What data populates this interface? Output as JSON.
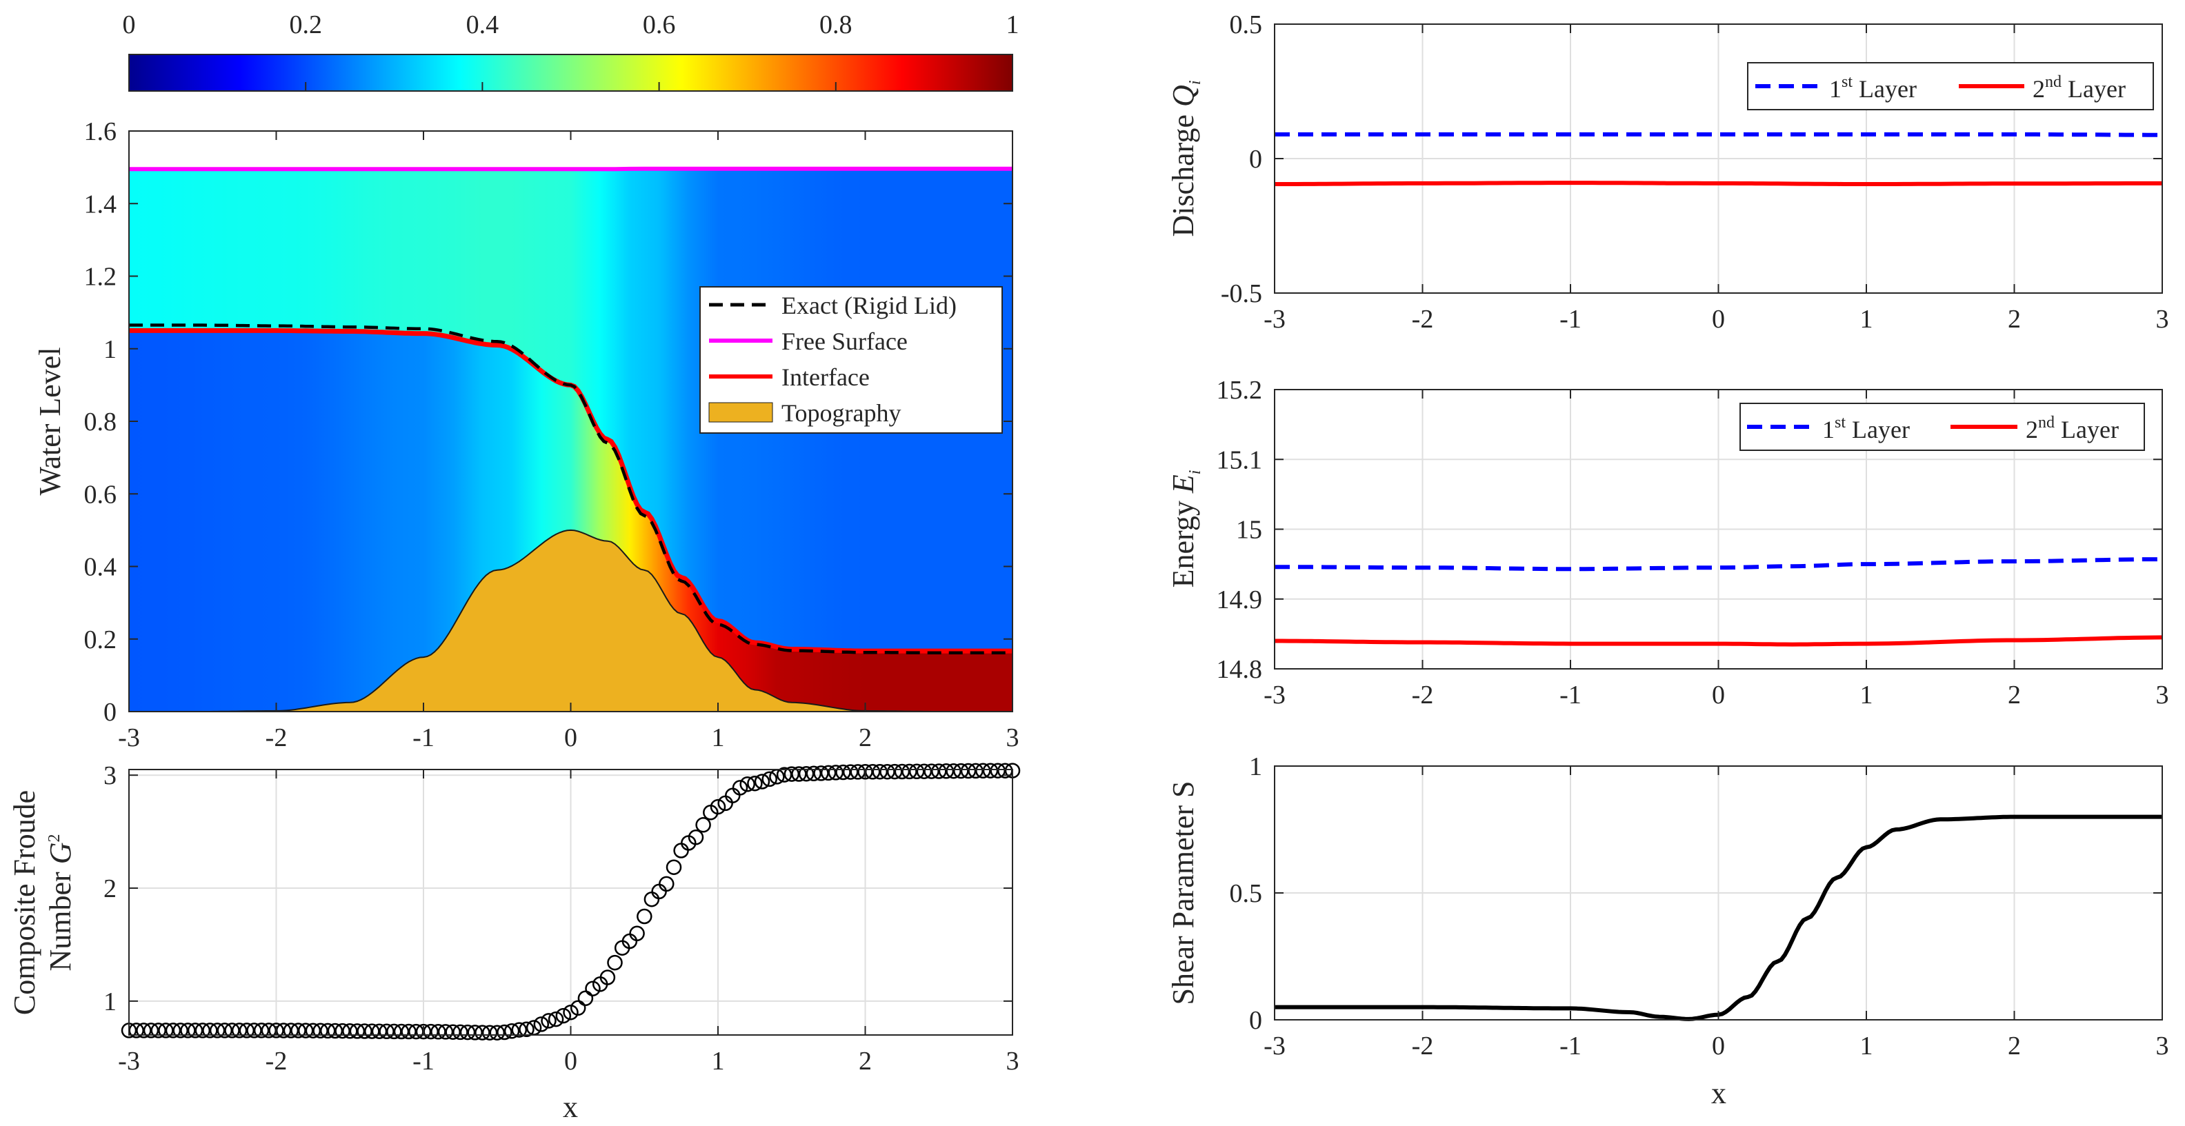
{
  "colors": {
    "layer1": "#0000ff",
    "layer2": "#ff0000",
    "exact": "#000000",
    "free_surface": "#ff00ff",
    "interface": "#ff0000",
    "topography": "#edb120",
    "shear": "#000000",
    "grid": "#dfdfdf",
    "axis": "#262626",
    "jet_low": "#00008f",
    "jet_high": "#800000"
  },
  "chart_data": [
    {
      "id": "colorbar",
      "type": "heatmap",
      "colormap": "jet",
      "range": [
        0,
        1
      ],
      "ticks": [
        0,
        0.2,
        0.4,
        0.6,
        0.8,
        1
      ],
      "tick_labels": [
        "0",
        "0.2",
        "0.4",
        "0.6",
        "0.8",
        "1"
      ],
      "orientation": "horizontal",
      "placement": "top"
    },
    {
      "id": "water-level",
      "type": "area",
      "title": "",
      "xlabel": "",
      "ylabel": "Water Level",
      "xlim": [
        -3,
        3
      ],
      "ylim": [
        0,
        1.6
      ],
      "xticks": [
        -3,
        -2,
        -1,
        0,
        1,
        2,
        3
      ],
      "xtick_labels": [
        "-3",
        "-2",
        "-1",
        "0",
        "1",
        "2",
        "3"
      ],
      "yticks": [
        0,
        0.2,
        0.4,
        0.6,
        0.8,
        1,
        1.2,
        1.4,
        1.6
      ],
      "ytick_labels": [
        "0",
        "0.2",
        "0.4",
        "0.6",
        "0.8",
        "1",
        "1.2",
        "1.4",
        "1.6"
      ],
      "grid": false,
      "legend_position": "right",
      "x": [
        -3,
        -2.5,
        -2,
        -1.5,
        -1,
        -0.5,
        0,
        0.25,
        0.5,
        0.75,
        1,
        1.25,
        1.5,
        2,
        2.5,
        3
      ],
      "series": [
        {
          "name": "Exact (Rigid Lid)",
          "style": "dashed",
          "values": [
            1.065,
            1.065,
            1.063,
            1.06,
            1.055,
            1.02,
            0.9,
            0.74,
            0.54,
            0.36,
            0.24,
            0.185,
            0.168,
            0.163,
            0.162,
            0.162
          ]
        },
        {
          "name": "Free Surface",
          "style": "solid",
          "values": [
            1.495,
            1.495,
            1.495,
            1.495,
            1.495,
            1.495,
            1.495,
            1.495,
            1.496,
            1.496,
            1.496,
            1.496,
            1.496,
            1.496,
            1.496,
            1.496
          ]
        },
        {
          "name": "Interface",
          "style": "solid",
          "values": [
            1.05,
            1.05,
            1.05,
            1.048,
            1.042,
            1.01,
            0.9,
            0.75,
            0.55,
            0.37,
            0.25,
            0.19,
            0.172,
            0.167,
            0.167,
            0.167
          ]
        },
        {
          "name": "Topography",
          "style": "filled",
          "values": [
            0,
            0,
            0.002,
            0.025,
            0.15,
            0.39,
            0.5,
            0.47,
            0.39,
            0.27,
            0.15,
            0.06,
            0.025,
            0.002,
            0,
            0
          ]
        }
      ],
      "field_layers": [
        {
          "name": "upper-layer",
          "x": [
            -3,
            -2,
            -1,
            -0.5,
            0,
            0.5,
            1,
            2,
            3
          ],
          "values": [
            0.38,
            0.39,
            0.41,
            0.42,
            0.41,
            0.32,
            0.24,
            0.22,
            0.22
          ]
        },
        {
          "name": "lower-layer",
          "x": [
            -3,
            -2,
            -1,
            -0.5,
            0,
            0.25,
            0.5,
            0.75,
            1,
            1.5,
            2,
            3
          ],
          "values": [
            0.21,
            0.22,
            0.26,
            0.32,
            0.42,
            0.55,
            0.69,
            0.82,
            0.9,
            0.95,
            0.96,
            0.96
          ]
        }
      ]
    },
    {
      "id": "froude",
      "type": "scatter",
      "xlabel": "x",
      "ylabel_line1": "Composite Froude",
      "ylabel_line2": "Number",
      "ylabel_symbol": "G",
      "ylabel_power": "2",
      "xlim": [
        -3,
        3
      ],
      "ylim": [
        0.7,
        3.05
      ],
      "xticks": [
        -3,
        -2,
        -1,
        0,
        1,
        2,
        3
      ],
      "xtick_labels": [
        "-3",
        "-2",
        "-1",
        "0",
        "1",
        "2",
        "3"
      ],
      "yticks": [
        1,
        2,
        3
      ],
      "ytick_labels": [
        "1",
        "2",
        "3"
      ],
      "grid": true,
      "marker": "circle",
      "x": [
        -3,
        -2,
        -1,
        -0.5,
        -0.3,
        -0.1,
        0,
        0.2,
        0.4,
        0.6,
        0.8,
        1,
        1.2,
        1.5,
        2,
        3
      ],
      "values": [
        0.74,
        0.74,
        0.73,
        0.72,
        0.75,
        0.84,
        0.9,
        1.15,
        1.53,
        1.97,
        2.4,
        2.72,
        2.92,
        3.01,
        3.03,
        3.04
      ],
      "count": 121
    },
    {
      "id": "discharge",
      "type": "line",
      "ylabel": "Discharge",
      "ylabel_symbol": "Q",
      "ylabel_sub": "i",
      "xlim": [
        -3,
        3
      ],
      "ylim": [
        -0.5,
        0.5
      ],
      "xticks": [
        -3,
        -2,
        -1,
        0,
        1,
        2,
        3
      ],
      "xtick_labels": [
        "-3",
        "-2",
        "-1",
        "0",
        "1",
        "2",
        "3"
      ],
      "yticks": [
        -0.5,
        0,
        0.5
      ],
      "ytick_labels": [
        "-0.5",
        "0",
        "0.5"
      ],
      "grid": true,
      "legend_position": "top-right",
      "x": [
        -3,
        -2,
        -1,
        0,
        1,
        2,
        3
      ],
      "series": [
        {
          "name": "Layer",
          "sup": "st",
          "num": "1",
          "style": "dashed",
          "values": [
            0.09,
            0.09,
            0.09,
            0.09,
            0.09,
            0.09,
            0.088
          ]
        },
        {
          "name": "Layer",
          "sup": "nd",
          "num": "2",
          "style": "solid",
          "values": [
            -0.095,
            -0.092,
            -0.09,
            -0.092,
            -0.095,
            -0.093,
            -0.092
          ]
        }
      ]
    },
    {
      "id": "energy",
      "type": "line",
      "ylabel": "Energy",
      "ylabel_symbol": "E",
      "ylabel_sub": "i",
      "xlim": [
        -3,
        3
      ],
      "ylim": [
        14.8,
        15.2
      ],
      "xticks": [
        -3,
        -2,
        -1,
        0,
        1,
        2,
        3
      ],
      "xtick_labels": [
        "-3",
        "-2",
        "-1",
        "0",
        "1",
        "2",
        "3"
      ],
      "yticks": [
        14.8,
        14.9,
        15,
        15.1,
        15.2
      ],
      "ytick_labels": [
        "14.8",
        "14.9",
        "15",
        "15.1",
        "15.2"
      ],
      "grid": true,
      "legend_position": "top-right",
      "x": [
        -3,
        -2,
        -1,
        0,
        0.5,
        1,
        2,
        3
      ],
      "series": [
        {
          "name": "Layer",
          "sup": "st",
          "num": "1",
          "style": "dashed",
          "values": [
            14.946,
            14.945,
            14.943,
            14.945,
            14.947,
            14.95,
            14.954,
            14.957
          ]
        },
        {
          "name": "Layer",
          "sup": "nd",
          "num": "2",
          "style": "solid",
          "values": [
            14.84,
            14.838,
            14.836,
            14.836,
            14.835,
            14.836,
            14.841,
            14.845
          ]
        }
      ]
    },
    {
      "id": "shear",
      "type": "line",
      "xlabel": "x",
      "ylabel": "Shear  Parameter S",
      "xlim": [
        -3,
        3
      ],
      "ylim": [
        0,
        1
      ],
      "xticks": [
        -3,
        -2,
        -1,
        0,
        1,
        2,
        3
      ],
      "xtick_labels": [
        "-3",
        "-2",
        "-1",
        "0",
        "1",
        "2",
        "3"
      ],
      "yticks": [
        0,
        0.5,
        1
      ],
      "ytick_labels": [
        "0",
        "0.5",
        "1"
      ],
      "grid": true,
      "x": [
        -3,
        -2,
        -1,
        -0.6,
        -0.4,
        -0.2,
        0,
        0.2,
        0.4,
        0.6,
        0.8,
        1,
        1.2,
        1.5,
        2,
        3
      ],
      "values": [
        0.05,
        0.05,
        0.045,
        0.03,
        0.012,
        0.003,
        0.02,
        0.09,
        0.23,
        0.4,
        0.56,
        0.68,
        0.75,
        0.79,
        0.8,
        0.8
      ]
    }
  ]
}
